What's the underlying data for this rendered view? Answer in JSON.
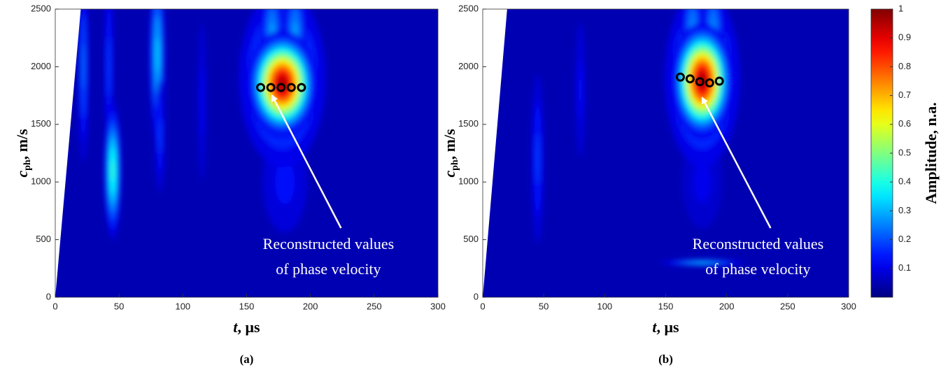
{
  "chart_data": [
    {
      "type": "heatmap",
      "label": "(a)",
      "xlabel": {
        "symbol": "t",
        "unit": ", μs"
      },
      "ylabel": {
        "symbol": "c",
        "subscript": "ph",
        "unit": ", m/s"
      },
      "xlim": [
        0,
        300
      ],
      "ylim": [
        0,
        2500
      ],
      "xticks": [
        0,
        50,
        100,
        150,
        200,
        250,
        300
      ],
      "yticks": [
        0,
        500,
        1000,
        1500,
        2000,
        2500
      ],
      "colormap": "jet",
      "zlim": [
        0,
        1
      ],
      "background_level": 0.05,
      "no_data_boundary": {
        "x": [
          0,
          20
        ],
        "y": [
          0,
          2500
        ]
      },
      "blobs": [
        {
          "x": 22,
          "y": 2000,
          "z": 0.25,
          "sx": 3,
          "sy": 600
        },
        {
          "x": 42,
          "y": 2000,
          "z": 0.2,
          "sx": 3,
          "sy": 700
        },
        {
          "x": 45,
          "y": 1100,
          "z": 0.45,
          "sx": 4,
          "sy": 350
        },
        {
          "x": 80,
          "y": 2100,
          "z": 0.35,
          "sx": 4,
          "sy": 500
        },
        {
          "x": 82,
          "y": 1400,
          "z": 0.2,
          "sx": 3,
          "sy": 400
        },
        {
          "x": 115,
          "y": 1700,
          "z": 0.15,
          "sx": 3,
          "sy": 700
        },
        {
          "x": 180,
          "y": 1000,
          "z": 0.15,
          "sx": 18,
          "sy": 450
        },
        {
          "x": 178,
          "y": 1900,
          "z": 0.35,
          "sx": 22,
          "sy": 500
        },
        {
          "x": 170,
          "y": 2300,
          "z": 0.3,
          "sx": 6,
          "sy": 300
        },
        {
          "x": 188,
          "y": 2300,
          "z": 0.3,
          "sx": 6,
          "sy": 300
        },
        {
          "x": 178,
          "y": 1850,
          "z": 1.0,
          "sx": 13,
          "sy": 220
        }
      ],
      "series": [
        {
          "name": "Reconstructed values of phase velocity",
          "color": "#000000",
          "x": [
            161,
            169,
            177,
            185,
            193
          ],
          "values": [
            1820,
            1820,
            1820,
            1820,
            1820
          ]
        }
      ],
      "annotation": {
        "text": [
          "Reconstructed values",
          "of phase velocity"
        ],
        "xy": [
          170,
          1750
        ],
        "xytext": [
          224,
          600
        ]
      }
    },
    {
      "type": "heatmap",
      "label": "(b)",
      "xlabel": {
        "symbol": "t",
        "unit": ", μs"
      },
      "ylabel": {
        "symbol": "c",
        "subscript": "ph",
        "unit": ", m/s"
      },
      "xlim": [
        0,
        300
      ],
      "ylim": [
        0,
        2500
      ],
      "xticks": [
        0,
        50,
        100,
        150,
        200,
        250,
        300
      ],
      "yticks": [
        0,
        500,
        1000,
        1500,
        2000,
        2500
      ],
      "colormap": "jet",
      "zlim": [
        0,
        1
      ],
      "background_level": 0.05,
      "no_data_boundary": {
        "x": [
          0,
          20
        ],
        "y": [
          0,
          2500
        ]
      },
      "blobs": [
        {
          "x": 45,
          "y": 1200,
          "z": 0.2,
          "sx": 4,
          "sy": 600
        },
        {
          "x": 80,
          "y": 1800,
          "z": 0.15,
          "sx": 4,
          "sy": 600
        },
        {
          "x": 180,
          "y": 1000,
          "z": 0.12,
          "sx": 18,
          "sy": 450
        },
        {
          "x": 180,
          "y": 300,
          "z": 0.35,
          "sx": 22,
          "sy": 18
        },
        {
          "x": 180,
          "y": 1900,
          "z": 0.35,
          "sx": 20,
          "sy": 500
        },
        {
          "x": 172,
          "y": 2300,
          "z": 0.3,
          "sx": 6,
          "sy": 300
        },
        {
          "x": 189,
          "y": 2300,
          "z": 0.3,
          "sx": 6,
          "sy": 300
        },
        {
          "x": 180,
          "y": 1880,
          "z": 1.0,
          "sx": 12,
          "sy": 240
        }
      ],
      "series": [
        {
          "name": "Reconstructed values of phase velocity",
          "color": "#000000",
          "x": [
            162,
            170,
            178,
            186,
            194
          ],
          "values": [
            1910,
            1895,
            1870,
            1860,
            1875
          ]
        }
      ],
      "annotation": {
        "text": [
          "Reconstructed values",
          "of phase velocity"
        ],
        "xy": [
          180,
          1730
        ],
        "xytext": [
          236,
          600
        ]
      }
    },
    {
      "type": "colorbar",
      "colormap": "jet",
      "label": "Amplitude, n.a.",
      "zlim": [
        0,
        1
      ],
      "zticks": [
        0.1,
        0.2,
        0.3,
        0.4,
        0.5,
        0.6,
        0.7,
        0.8,
        0.9,
        1
      ]
    }
  ]
}
